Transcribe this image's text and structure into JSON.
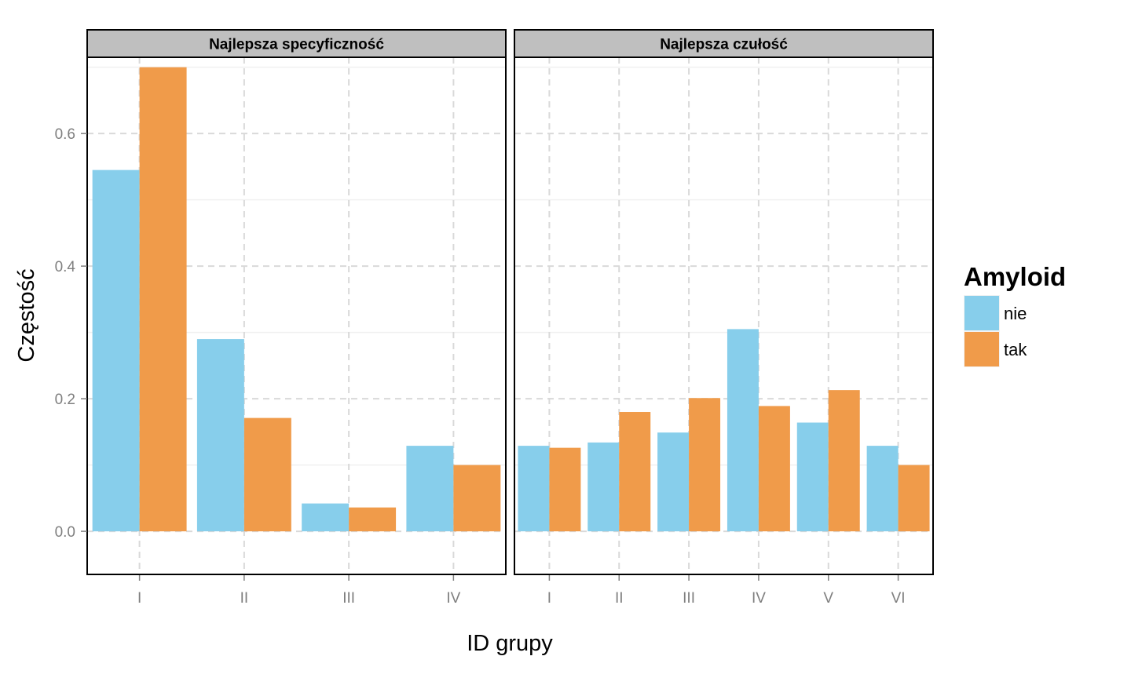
{
  "chart_data": {
    "type": "bar",
    "xlabel": "ID grupy",
    "ylabel": "Częstość",
    "ylim": [
      -0.065,
      0.715
    ],
    "yticks": [
      "0.0",
      "0.2",
      "0.4",
      "0.6"
    ],
    "grid": true,
    "legend": {
      "title": "Amyloid",
      "position": "right",
      "entries": [
        "nie",
        "tak"
      ]
    },
    "colors": {
      "nie": "#87CEEB",
      "tak": "#F09B4A"
    },
    "panels": [
      {
        "title": "Najlepsza specyficzność",
        "categories": [
          "I",
          "II",
          "III",
          "IV"
        ],
        "series": [
          {
            "name": "nie",
            "values": [
              0.545,
              0.29,
              0.042,
              0.129
            ]
          },
          {
            "name": "tak",
            "values": [
              0.7,
              0.171,
              0.036,
              0.1
            ]
          }
        ]
      },
      {
        "title": "Najlepsza czułość",
        "categories": [
          "I",
          "II",
          "III",
          "IV",
          "V",
          "VI"
        ],
        "series": [
          {
            "name": "nie",
            "values": [
              0.129,
              0.134,
              0.149,
              0.305,
              0.164,
              0.129
            ]
          },
          {
            "name": "tak",
            "values": [
              0.126,
              0.18,
              0.201,
              0.189,
              0.213,
              0.1
            ]
          }
        ]
      }
    ]
  }
}
